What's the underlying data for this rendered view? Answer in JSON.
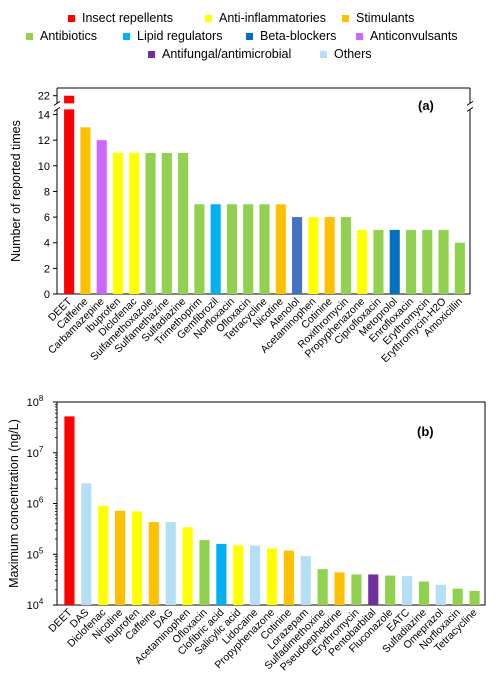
{
  "legend": [
    {
      "label": "Insect repellents",
      "color": "#ff0000"
    },
    {
      "label": "Anti-inflammatories",
      "color": "#ffff00"
    },
    {
      "label": "Stimulants",
      "color": "#ffc000"
    },
    {
      "label": "Antibiotics",
      "color": "#92d050"
    },
    {
      "label": "Lipid regulators",
      "color": "#00b0f0"
    },
    {
      "label": "Beta-blockers",
      "color": "#0070c0"
    },
    {
      "label": "Anticonvulsants",
      "color": "#cc66ff"
    },
    {
      "label": "Antifungal/antimicrobial",
      "color": "#7030a0"
    },
    {
      "label": "Others",
      "color": "#b4dff5"
    }
  ],
  "chart_data": [
    {
      "type": "bar",
      "panel_label": "(a)",
      "ylabel": "Number of reported times",
      "yticks": [
        0,
        2,
        4,
        6,
        8,
        10,
        12,
        14,
        22
      ],
      "axis_break": [
        14.4,
        21.4
      ],
      "ylim": [
        0,
        22.6
      ],
      "categories": [
        "DEET",
        "Caffeine",
        "Carbamazepine",
        "Ibuprofen",
        "Diclofenac",
        "Sulfamethoxazole",
        "Sulfamethazine",
        "Sulfadiazine",
        "Trimethoprim",
        "Gemfibrozil",
        "Norfloxacin",
        "Ofloxacin",
        "Tetracycline",
        "Nicotine",
        "Atenolol",
        "Acetaminophen",
        "Cotinine",
        "Roxithromycin",
        "Propyphenazone",
        "Ciprofloxacin",
        "Metoprolol",
        "Enrofloxacin",
        "Erythromycin",
        "Erythromycin-H2O",
        "Amoxicillin"
      ],
      "values": [
        22,
        13,
        12,
        11,
        11,
        11,
        11,
        11,
        7,
        7,
        7,
        7,
        7,
        7,
        6,
        6,
        6,
        6,
        5,
        5,
        5,
        5,
        5,
        5,
        4
      ],
      "colors": [
        "#ff0000",
        "#ffc000",
        "#cc66ff",
        "#ffff00",
        "#ffff00",
        "#92d050",
        "#92d050",
        "#92d050",
        "#92d050",
        "#00b0f0",
        "#92d050",
        "#92d050",
        "#92d050",
        "#ffc000",
        "#4472c4",
        "#ffff00",
        "#ffc000",
        "#92d050",
        "#ffff00",
        "#92d050",
        "#0070c0",
        "#92d050",
        "#92d050",
        "#92d050",
        "#92d050"
      ]
    },
    {
      "type": "bar",
      "panel_label": "(b)",
      "ylabel": "Maximum concentration (ng/L)",
      "yscale": "log",
      "ylim": [
        10000,
        100000000
      ],
      "ytick_exponents": [
        "4",
        "5",
        "6",
        "7",
        "8"
      ],
      "ytick_base": "10",
      "categories": [
        "DEET",
        "DAS",
        "Diclofenac",
        "Nicotine",
        "Ibuprofen",
        "Caffeine",
        "DAG",
        "Acetaminophen",
        "Ofloxacin",
        "Clofibric acid",
        "Salicylic acid",
        "Lidocaine",
        "Propyphenazone",
        "Cotinine",
        "Lorazepam",
        "Sulfadimethoxine",
        "Pseudoephedrine",
        "Erythromycin",
        "Pentobarbital",
        "Fluconazole",
        "EATC",
        "Sulfadiazine",
        "Omeprazol",
        "Norfloxacin",
        "Tetracycline"
      ],
      "values": [
        52000000,
        2500000,
        900000,
        720000,
        700000,
        430000,
        430000,
        340000,
        190000,
        160000,
        150000,
        148000,
        130000,
        118000,
        92000,
        51000,
        44000,
        40000,
        40000,
        38000,
        37000,
        29000,
        25000,
        21000,
        19000
      ],
      "colors": [
        "#ff0000",
        "#b4dff5",
        "#ffff00",
        "#ffc000",
        "#ffff00",
        "#ffc000",
        "#b4dff5",
        "#ffff00",
        "#92d050",
        "#00b0f0",
        "#ffff00",
        "#b4dff5",
        "#ffff00",
        "#ffc000",
        "#b4dff5",
        "#92d050",
        "#ffc000",
        "#92d050",
        "#7030a0",
        "#92d050",
        "#b4dff5",
        "#92d050",
        "#b4dff5",
        "#92d050",
        "#92d050"
      ]
    }
  ]
}
